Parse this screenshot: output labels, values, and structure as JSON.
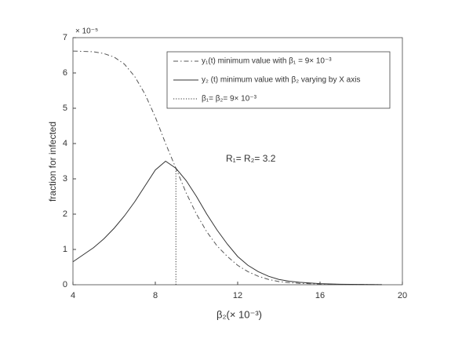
{
  "chart_data": {
    "type": "line",
    "x_label": "β₂(× 10⁻³)",
    "y_label": "fraction for infected",
    "y_multiplier": "× 10⁻⁵",
    "annotation": "R₁= R₂= 3.2",
    "xlim": [
      4,
      20
    ],
    "xticks": [
      4,
      8,
      12,
      16,
      20
    ],
    "ylim": [
      0,
      7
    ],
    "yticks": [
      0,
      1,
      2,
      3,
      4,
      5,
      6,
      7
    ],
    "x": [
      4,
      4.5,
      5,
      5.5,
      6,
      6.5,
      7,
      7.5,
      8,
      8.5,
      9,
      9.5,
      10,
      10.5,
      11,
      11.5,
      12,
      12.5,
      13,
      13.5,
      14,
      14.5,
      15,
      16,
      17,
      18,
      19
    ],
    "series": [
      {
        "name": "y₁(t) minimum value with β₁ = 9× 10⁻³",
        "color": "#555555",
        "dash": "dashdot",
        "values": [
          6.62,
          6.61,
          6.6,
          6.55,
          6.45,
          6.25,
          5.9,
          5.4,
          4.75,
          4.0,
          3.3,
          2.6,
          2.0,
          1.5,
          1.1,
          0.8,
          0.55,
          0.37,
          0.24,
          0.15,
          0.09,
          0.06,
          0.04,
          0.02,
          0.01,
          0.005,
          0.003
        ]
      },
      {
        "name": "y₂ (t) minimum value with β₂ varying by X axis",
        "color": "#333333",
        "dash": "solid",
        "values": [
          0.65,
          0.85,
          1.05,
          1.3,
          1.6,
          1.95,
          2.35,
          2.8,
          3.25,
          3.5,
          3.3,
          2.95,
          2.5,
          2.0,
          1.55,
          1.15,
          0.8,
          0.55,
          0.37,
          0.24,
          0.15,
          0.1,
          0.07,
          0.03,
          0.015,
          0.008,
          0.004
        ]
      },
      {
        "name": "β₁= β₂= 9× 10⁻³",
        "color": "#333333",
        "dash": "dotted",
        "x": [
          9,
          9
        ],
        "values": [
          0,
          3.3
        ]
      }
    ],
    "legend": "top-right"
  }
}
